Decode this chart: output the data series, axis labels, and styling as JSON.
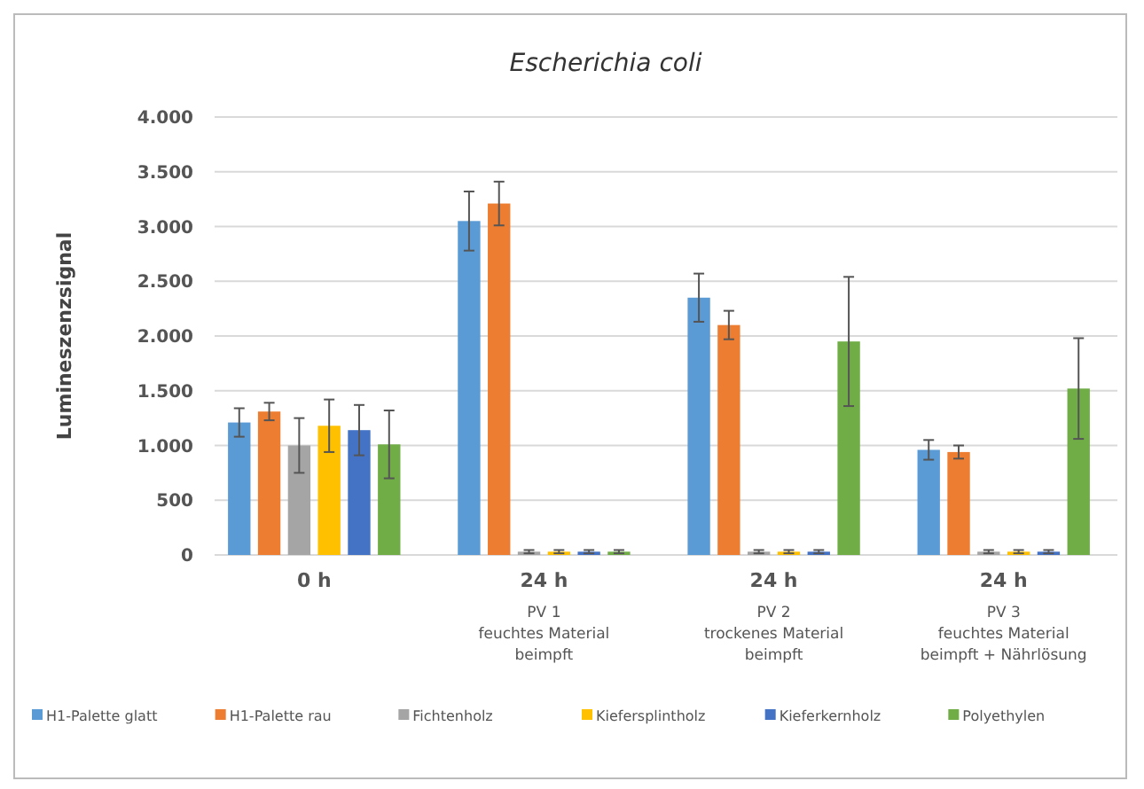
{
  "chart_data": {
    "type": "bar",
    "title": "Escherichia coli",
    "ylabel": "Lumineszenzsignal",
    "categories": [
      "0 h",
      "24 h\nPV 1\nfeuchtes Material\nbeimpft",
      "24 h\nPV 2\ntrockenes Material\nbeimpft",
      "24 h\nPV 3\nfeuchtes Material\nbeimpft + Nährlösung"
    ],
    "series": [
      {
        "name": "H1-Palette glatt",
        "color": "#5b9bd5",
        "values": [
          1210,
          3050,
          2350,
          960
        ],
        "errors": [
          130,
          270,
          220,
          90
        ]
      },
      {
        "name": "H1-Palette rau",
        "color": "#ed7d31",
        "values": [
          1310,
          3210,
          2100,
          940
        ],
        "errors": [
          80,
          200,
          130,
          60
        ]
      },
      {
        "name": "Fichtenholz",
        "color": "#a5a5a5",
        "values": [
          1000,
          30,
          30,
          30
        ],
        "errors": [
          250,
          15,
          15,
          15
        ]
      },
      {
        "name": "Kiefersplintholz",
        "color": "#ffc000",
        "values": [
          1180,
          30,
          30,
          30
        ],
        "errors": [
          240,
          15,
          15,
          15
        ]
      },
      {
        "name": "Kieferkernholz",
        "color": "#4472c4",
        "values": [
          1140,
          30,
          30,
          30
        ],
        "errors": [
          230,
          15,
          15,
          15
        ]
      },
      {
        "name": "Polyethylen",
        "color": "#70ad47",
        "values": [
          1010,
          30,
          1950,
          1520
        ],
        "errors": [
          310,
          15,
          590,
          460
        ]
      }
    ],
    "ylim": [
      0,
      4000
    ],
    "yticks": [
      0,
      {
        "value": 500,
        "label": "500"
      },
      {
        "value": 1000,
        "label": "1.000"
      },
      {
        "value": 1500,
        "label": "1.500"
      },
      {
        "value": 2000,
        "label": "2.000"
      },
      {
        "value": 2500,
        "label": "2.500"
      },
      {
        "value": 3000,
        "label": "3.000"
      },
      {
        "value": 3500,
        "label": "3.500"
      },
      {
        "value": 4000,
        "label": "4.000"
      }
    ],
    "grid": "y",
    "legend": "bottom"
  }
}
